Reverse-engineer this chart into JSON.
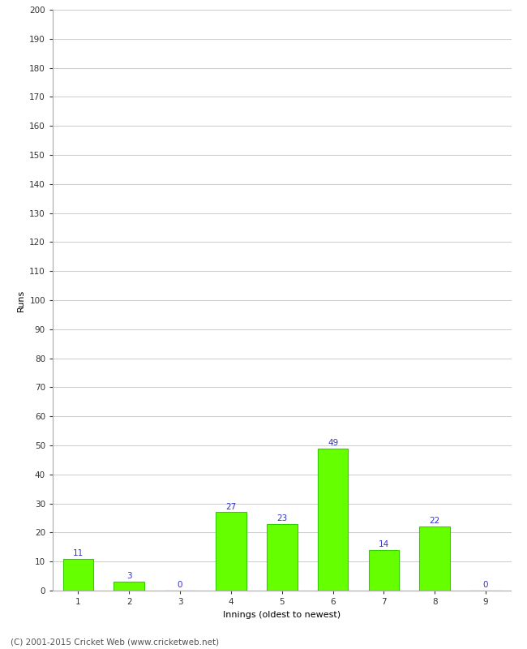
{
  "xlabel": "Innings (oldest to newest)",
  "ylabel": "Runs",
  "categories": [
    "1",
    "2",
    "3",
    "4",
    "5",
    "6",
    "7",
    "8",
    "9"
  ],
  "values": [
    11,
    3,
    0,
    27,
    23,
    49,
    14,
    22,
    0
  ],
  "bar_color": "#66ff00",
  "bar_edge_color": "#33cc00",
  "label_color": "#3333cc",
  "ylim": [
    0,
    200
  ],
  "yticks": [
    0,
    10,
    20,
    30,
    40,
    50,
    60,
    70,
    80,
    90,
    100,
    110,
    120,
    130,
    140,
    150,
    160,
    170,
    180,
    190,
    200
  ],
  "background_color": "#ffffff",
  "grid_color": "#cccccc",
  "footer_text": "(C) 2001-2015 Cricket Web (www.cricketweb.net)",
  "label_fontsize": 7.5,
  "axis_label_fontsize": 8,
  "tick_fontsize": 7.5,
  "footer_fontsize": 7.5
}
